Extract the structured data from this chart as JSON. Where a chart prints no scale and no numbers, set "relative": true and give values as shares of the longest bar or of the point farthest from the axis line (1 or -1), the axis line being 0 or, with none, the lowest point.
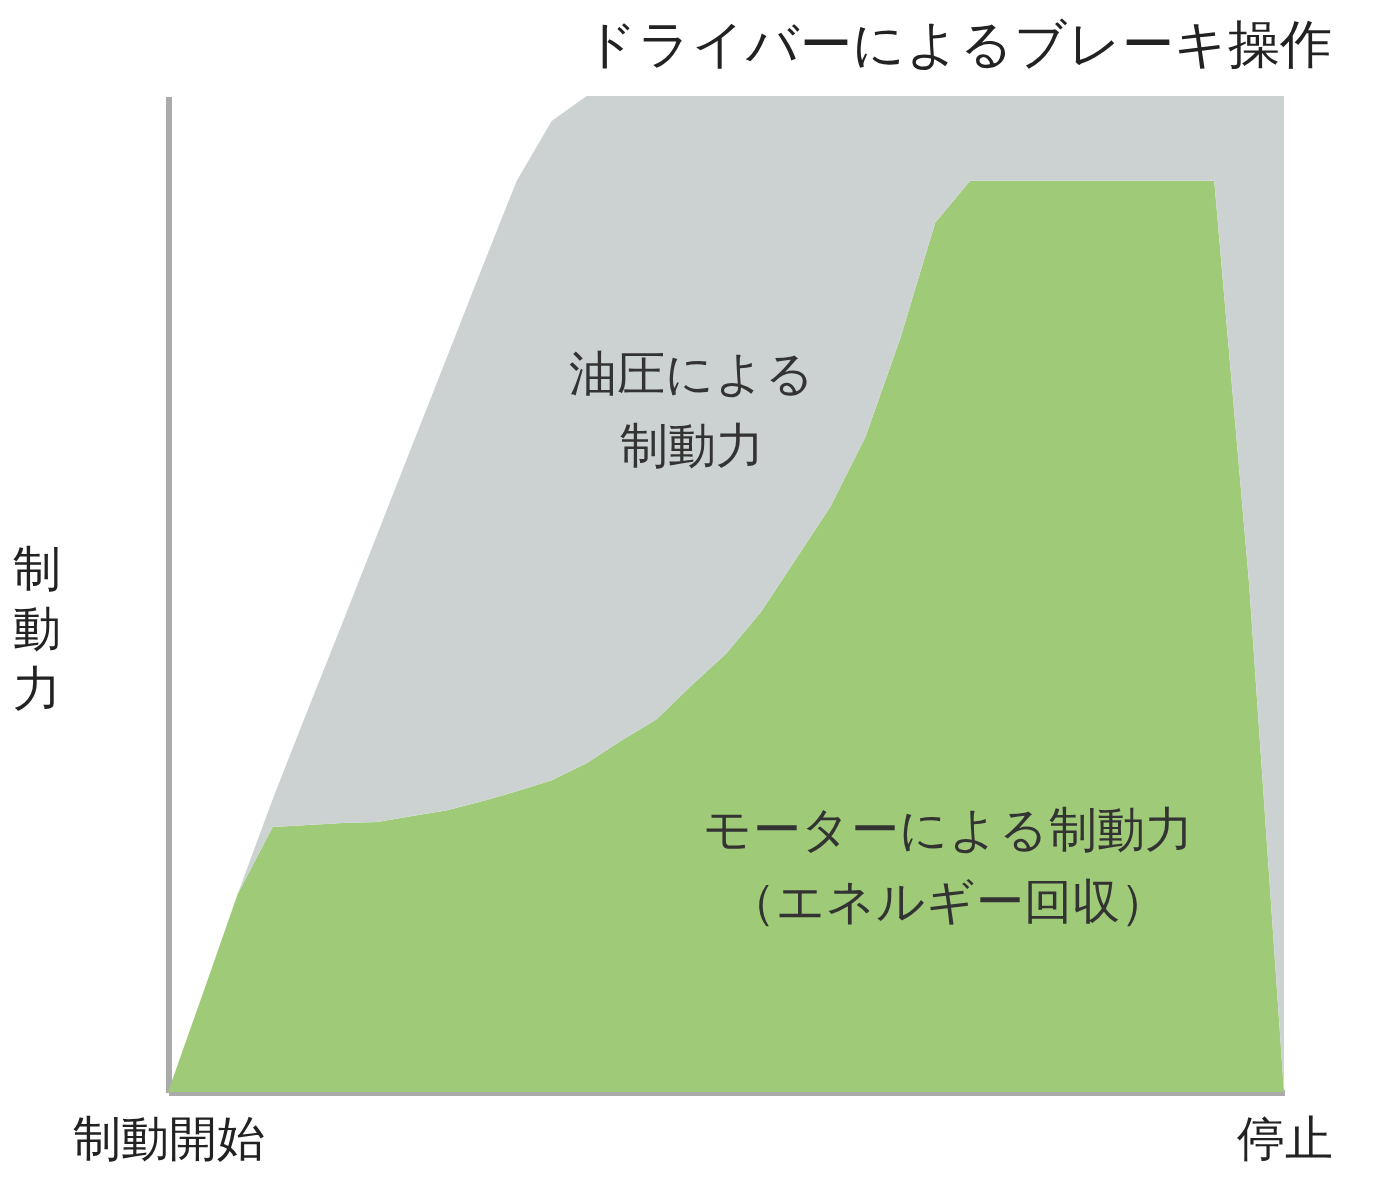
{
  "chart_data": {
    "type": "area",
    "title": "ドライバーによるブレーキ操作",
    "ylabel": "制動力",
    "stacked": true,
    "relative": true,
    "categories": [
      "制動開始",
      null,
      null,
      null,
      null,
      null,
      null,
      null,
      null,
      null,
      null,
      null,
      null,
      null,
      null,
      null,
      null,
      null,
      null,
      null,
      null,
      null,
      null,
      null,
      null,
      null,
      null,
      null,
      null,
      null,
      null,
      null,
      "停止"
    ],
    "series": [
      {
        "color": "#9fcb78",
        "values": [
          0,
          0.099,
          0.199,
          0.266,
          0.268,
          0.27,
          0.271,
          0.277,
          0.283,
          0.292,
          0.302,
          0.313,
          0.33,
          0.353,
          0.374,
          0.408,
          0.44,
          0.482,
          0.535,
          0.588,
          0.658,
          0.757,
          0.873,
          0.915,
          0.915,
          0.915,
          0.915,
          0.915,
          0.915,
          0.915,
          0.915,
          0.51,
          0
        ]
      },
      {
        "color": "#ccd2d2",
        "values": [
          0,
          0,
          0,
          0.028,
          0.115,
          0.201,
          0.289,
          0.372,
          0.455,
          0.535,
          0.613,
          0.662,
          0.67,
          0.647,
          0.626,
          0.592,
          0.56,
          0.518,
          0.465,
          0.412,
          0.342,
          0.243,
          0.127,
          0.085,
          0.085,
          0.085,
          0.085,
          0.085,
          0.085,
          0.085,
          0.085,
          0.49,
          1
        ]
      }
    ],
    "annotations": [
      "油圧による制動力",
      "モーターによる制動力（エネルギー回収）"
    ]
  }
}
